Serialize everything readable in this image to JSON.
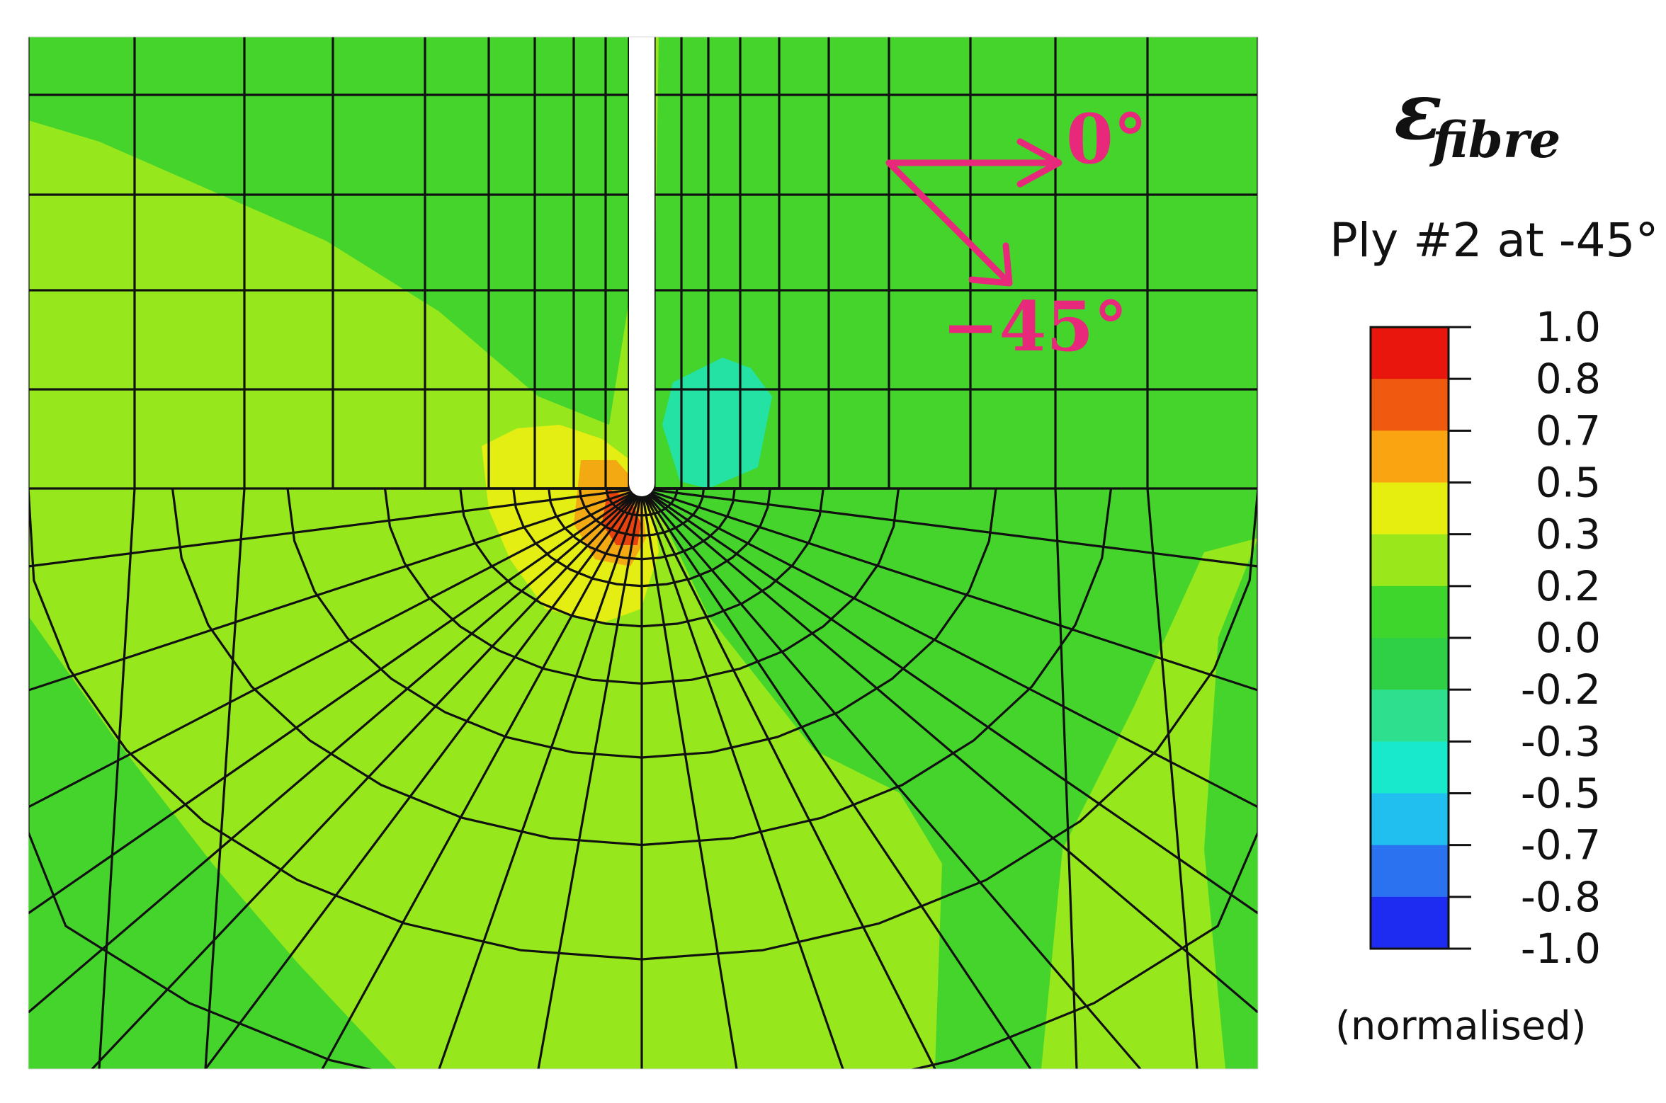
{
  "legend": {
    "symbol": "ε",
    "symbol_subscript": "fibre",
    "subtitle": "Ply #2 at -45°",
    "ticks": [
      "1.0",
      "0.8",
      "0.7",
      "0.5",
      "0.3",
      "0.2",
      "0.0",
      "-0.2",
      "-0.3",
      "-0.5",
      "-0.7",
      "-0.8",
      "-1.0"
    ],
    "colors": [
      "#e8160c",
      "#f05a10",
      "#f9a410",
      "#e6ee10",
      "#9ae81c",
      "#3ed52c",
      "#2fd046",
      "#2ee08e",
      "#18e8cc",
      "#20bff0",
      "#2a72f0",
      "#1d2cf0"
    ],
    "footer": "(normalised)"
  },
  "directions": {
    "label_0": "0°",
    "label_45": "−45°",
    "arrow_color": "#e8287a"
  },
  "field_colors": {
    "light_green": "#96e81c",
    "green": "#45d42c",
    "yellow": "#e4ee12",
    "orange": "#f2a912",
    "red": "#e8430f",
    "cyan": "#23e2a4",
    "notch": "#ffffff",
    "mesh_line": "#111111"
  }
}
